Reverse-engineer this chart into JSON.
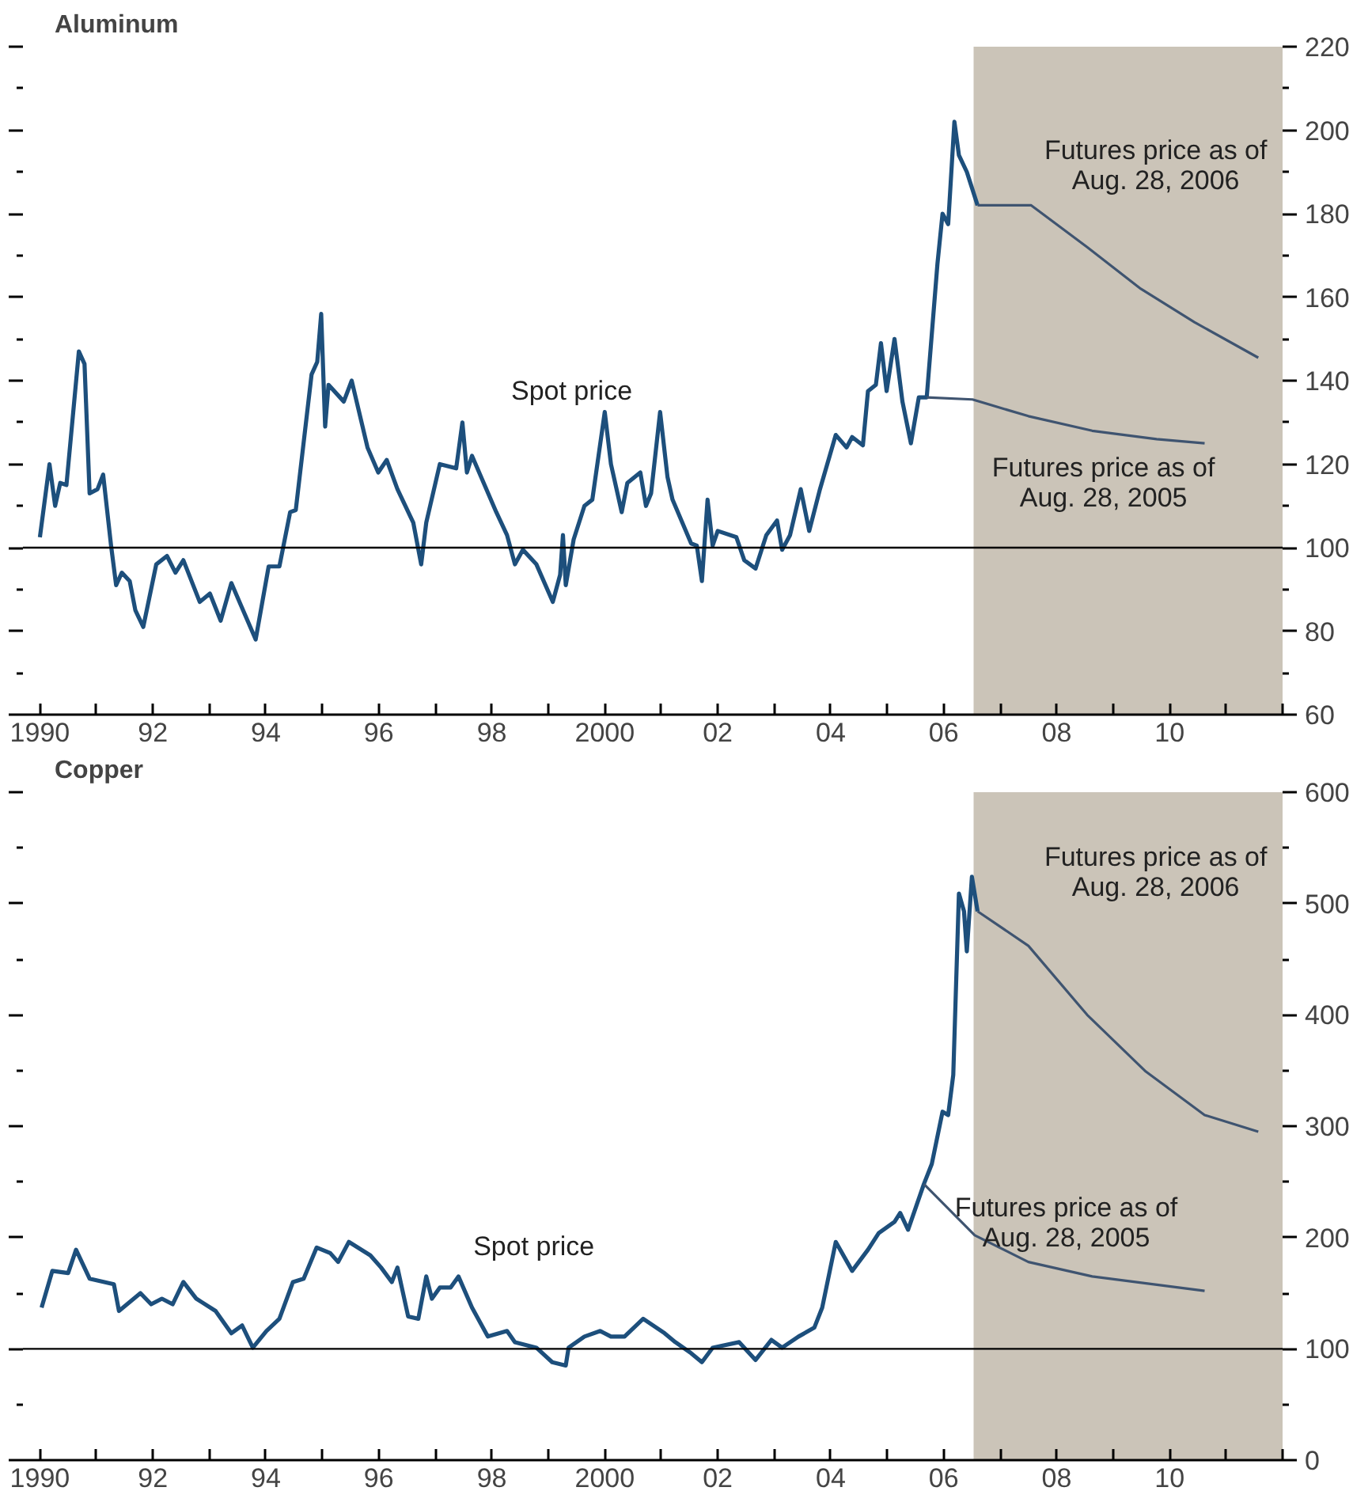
{
  "chart_data": [
    {
      "type": "line",
      "title": "Aluminum",
      "xlim": [
        1989.7,
        2012.0
      ],
      "ylim": [
        60,
        220
      ],
      "xticks": [
        {
          "value": 1990,
          "label": "1990"
        },
        {
          "value": 1991,
          "label": null
        },
        {
          "value": 1992,
          "label": "92"
        },
        {
          "value": 1993,
          "label": null
        },
        {
          "value": 1994,
          "label": "94"
        },
        {
          "value": 1995,
          "label": null
        },
        {
          "value": 1996,
          "label": "96"
        },
        {
          "value": 1997,
          "label": null
        },
        {
          "value": 1998,
          "label": "98"
        },
        {
          "value": 1999,
          "label": null
        },
        {
          "value": 2000,
          "label": "2000"
        },
        {
          "value": 2001,
          "label": null
        },
        {
          "value": 2002,
          "label": "02"
        },
        {
          "value": 2003,
          "label": null
        },
        {
          "value": 2004,
          "label": "04"
        },
        {
          "value": 2005,
          "label": null
        },
        {
          "value": 2006,
          "label": "06"
        },
        {
          "value": 2007,
          "label": null
        },
        {
          "value": 2008,
          "label": "08"
        },
        {
          "value": 2009,
          "label": null
        },
        {
          "value": 2010,
          "label": "10"
        },
        {
          "value": 2011,
          "label": null
        },
        {
          "value": 2012,
          "label": null
        }
      ],
      "yticks": [
        60,
        {
          "value": 70,
          "label": null
        },
        80,
        {
          "value": 90,
          "label": null
        },
        100,
        {
          "value": 110,
          "label": null
        },
        120,
        {
          "value": 130,
          "label": null
        },
        140,
        {
          "value": 150,
          "label": null
        },
        160,
        {
          "value": 170,
          "label": null
        },
        180,
        {
          "value": 190,
          "label": null
        },
        200,
        {
          "value": 210,
          "label": null
        },
        220
      ],
      "bands": [
        {
          "axis": "x",
          "from": 2006.53,
          "to": 2012.0,
          "color": "#cbc4b8"
        }
      ],
      "ref_lines": [
        {
          "axis": "y",
          "value": 100,
          "color": "#000000"
        }
      ],
      "series": [
        {
          "name": "Spot price",
          "color": "#1d4f7c",
          "x": [
            1990.0,
            1990.17,
            1990.27,
            1990.36,
            1990.47,
            1990.69,
            1990.79,
            1990.88,
            1991.02,
            1991.12,
            1991.26,
            1991.35,
            1991.45,
            1991.59,
            1991.69,
            1991.83,
            1992.06,
            1992.25,
            1992.4,
            1992.54,
            1992.83,
            1993.01,
            1993.2,
            1993.39,
            1993.82,
            1994.05,
            1994.24,
            1994.43,
            1994.53,
            1994.81,
            1994.91,
            1994.98,
            1995.05,
            1995.11,
            1995.38,
            1995.52,
            1995.8,
            1995.99,
            1996.14,
            1996.33,
            1996.61,
            1996.75,
            1996.84,
            1997.08,
            1997.37,
            1997.48,
            1997.56,
            1997.65,
            1998.08,
            1998.27,
            1998.41,
            1998.55,
            1998.79,
            1999.08,
            1999.21,
            1999.26,
            1999.31,
            1999.45,
            1999.64,
            1999.78,
            2000.0,
            2000.11,
            2000.3,
            2000.4,
            2000.63,
            2000.73,
            2000.82,
            2000.98,
            2001.11,
            2001.2,
            2001.53,
            2001.63,
            2001.72,
            2001.82,
            2001.91,
            2002.0,
            2002.33,
            2002.47,
            2002.67,
            2002.86,
            2003.05,
            2003.14,
            2003.28,
            2003.47,
            2003.62,
            2003.81,
            2004.09,
            2004.28,
            2004.38,
            2004.57,
            2004.66,
            2004.8,
            2004.89,
            2004.99,
            2005.13,
            2005.27,
            2005.42,
            2005.56,
            2005.7,
            2005.89,
            2005.98,
            2006.08,
            2006.19,
            2006.27,
            2006.41,
            2006.6
          ],
          "values": [
            102.5,
            120,
            110,
            115.5,
            115,
            147,
            144,
            113,
            114,
            117.5,
            100.5,
            91,
            94,
            92,
            85,
            81,
            96,
            98,
            94,
            97,
            87,
            89,
            82.5,
            91.5,
            78,
            95.5,
            95.5,
            108.5,
            109,
            141.5,
            144.5,
            156,
            129,
            139,
            135,
            140,
            124,
            118,
            121,
            114,
            106,
            96,
            106,
            120,
            119,
            130,
            118,
            122,
            108.5,
            103,
            96,
            99.5,
            96,
            87,
            93.5,
            103,
            91,
            102,
            110,
            111.5,
            132.5,
            120,
            108.5,
            115.5,
            118,
            110,
            113,
            132.5,
            117,
            111.5,
            101,
            100.5,
            92,
            111.5,
            100.5,
            104,
            102.5,
            97,
            95,
            103,
            106.5,
            99.5,
            103,
            114,
            104,
            114,
            127,
            124,
            126.5,
            124.5,
            137.5,
            139,
            149,
            137.5,
            150,
            135,
            125,
            136,
            136,
            168,
            180,
            177.5,
            202,
            194,
            190,
            182
          ]
        },
        {
          "name": "Futures price as of\nAug. 28, 2006",
          "color": "#3f5470",
          "x": [
            2006.6,
            2007.55,
            2008.54,
            2009.49,
            2010.44,
            2011.57
          ],
          "values": [
            182,
            182,
            172,
            162,
            154,
            145.5
          ]
        },
        {
          "name": "Futures price as of\nAug. 28, 2005",
          "color": "#3f5470",
          "x": [
            2005.7,
            2006.51,
            2007.5,
            2008.63,
            2009.77,
            2010.62
          ],
          "values": [
            136,
            135.5,
            131.5,
            128,
            126,
            125
          ]
        }
      ]
    },
    {
      "type": "line",
      "title": "Copper",
      "xlim": [
        1989.7,
        2012.0
      ],
      "ylim": [
        0,
        600
      ],
      "xticks": [
        {
          "value": 1990,
          "label": "1990"
        },
        {
          "value": 1991,
          "label": null
        },
        {
          "value": 1992,
          "label": "92"
        },
        {
          "value": 1993,
          "label": null
        },
        {
          "value": 1994,
          "label": "94"
        },
        {
          "value": 1995,
          "label": null
        },
        {
          "value": 1996,
          "label": "96"
        },
        {
          "value": 1997,
          "label": null
        },
        {
          "value": 1998,
          "label": "98"
        },
        {
          "value": 1999,
          "label": null
        },
        {
          "value": 2000,
          "label": "2000"
        },
        {
          "value": 2001,
          "label": null
        },
        {
          "value": 2002,
          "label": "02"
        },
        {
          "value": 2003,
          "label": null
        },
        {
          "value": 2004,
          "label": "04"
        },
        {
          "value": 2005,
          "label": null
        },
        {
          "value": 2006,
          "label": "06"
        },
        {
          "value": 2007,
          "label": null
        },
        {
          "value": 2008,
          "label": "08"
        },
        {
          "value": 2009,
          "label": null
        },
        {
          "value": 2010,
          "label": "10"
        },
        {
          "value": 2011,
          "label": null
        },
        {
          "value": 2012,
          "label": null
        }
      ],
      "yticks": [
        0,
        {
          "value": 50,
          "label": null
        },
        100,
        {
          "value": 150,
          "label": null
        },
        200,
        {
          "value": 250,
          "label": null
        },
        300,
        {
          "value": 350,
          "label": null
        },
        400,
        {
          "value": 450,
          "label": null
        },
        500,
        {
          "value": 550,
          "label": null
        },
        600
      ],
      "bands": [
        {
          "axis": "x",
          "from": 2006.53,
          "to": 2012.0,
          "color": "#cbc4b8"
        }
      ],
      "ref_lines": [
        {
          "axis": "y",
          "value": 100,
          "color": "#000000"
        }
      ],
      "series": [
        {
          "name": "Spot price",
          "color": "#1d4f7c",
          "x": [
            1990.03,
            1990.22,
            1990.5,
            1990.64,
            1990.88,
            1991.31,
            1991.4,
            1991.78,
            1991.97,
            1992.16,
            1992.35,
            1992.54,
            1992.77,
            1993.11,
            1993.39,
            1993.58,
            1993.77,
            1994.01,
            1994.24,
            1994.48,
            1994.67,
            1994.9,
            1995.14,
            1995.28,
            1995.47,
            1995.85,
            1996.04,
            1996.23,
            1996.33,
            1996.52,
            1996.7,
            1996.84,
            1996.94,
            1997.08,
            1997.27,
            1997.41,
            1997.65,
            1997.93,
            1998.27,
            1998.41,
            1998.79,
            1999.07,
            1999.31,
            1999.36,
            1999.64,
            1999.92,
            2000.11,
            2000.35,
            2000.68,
            2001.06,
            2001.25,
            2001.53,
            2001.72,
            2001.91,
            2002.38,
            2002.67,
            2002.95,
            2003.14,
            2003.43,
            2003.71,
            2003.85,
            2004.09,
            2004.38,
            2004.66,
            2004.85,
            2005.13,
            2005.23,
            2005.37,
            2005.65,
            2005.79,
            2005.98,
            2006.08,
            2006.17,
            2006.27,
            2006.36,
            2006.41,
            2006.5,
            2006.6
          ],
          "values": [
            137,
            170,
            168,
            189,
            163,
            158,
            134,
            150,
            140,
            145,
            140,
            160,
            145,
            134,
            114,
            121,
            101,
            116,
            127,
            160,
            163,
            191,
            186,
            178,
            196,
            184,
            173,
            160,
            173,
            129,
            127,
            165,
            145,
            155,
            155,
            165,
            137,
            111,
            116,
            106,
            101,
            88,
            85,
            101,
            111,
            116,
            111,
            111,
            127,
            114,
            106,
            96,
            88,
            101,
            106,
            90,
            108,
            101,
            111,
            119,
            137,
            196,
            170,
            189,
            204,
            214,
            222,
            207,
            248,
            266,
            313,
            310,
            346,
            509,
            493,
            457,
            524,
            493
          ]
        },
        {
          "name": "Futures price as of\nAug. 28, 2006",
          "color": "#3f5470",
          "x": [
            2006.6,
            2007.5,
            2008.54,
            2009.58,
            2010.62,
            2011.57
          ],
          "values": [
            493,
            462,
            400,
            349,
            310,
            295
          ]
        },
        {
          "name": "Futures price as of\nAug. 28, 2005",
          "color": "#3f5470",
          "x": [
            2005.65,
            2006.55,
            2007.5,
            2008.63,
            2010.62
          ],
          "values": [
            248,
            202,
            178,
            165,
            152
          ]
        }
      ]
    }
  ]
}
